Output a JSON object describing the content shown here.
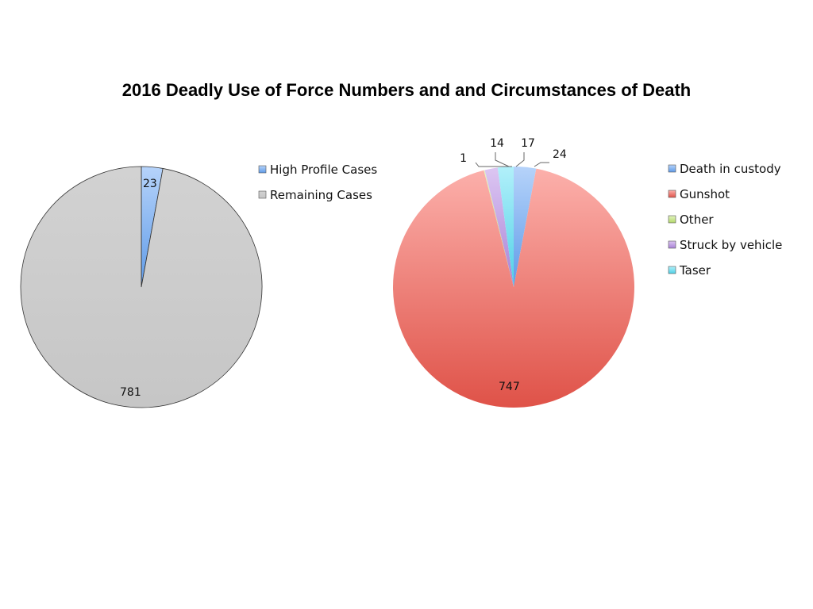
{
  "title": "2016 Deadly Use of Force Numbers and and Circumstances of Death",
  "chart_data": [
    {
      "type": "pie",
      "title": "",
      "legend_position": "right",
      "slices": [
        {
          "label": "High Profile Cases",
          "value": 23,
          "color": "#8fb8f2"
        },
        {
          "label": "Remaining Cases",
          "value": 781,
          "color": "#cccccc"
        }
      ]
    },
    {
      "type": "pie",
      "title": "",
      "legend_position": "right",
      "slices": [
        {
          "label": "Death in custody",
          "value": 24,
          "color": "#93c1f7"
        },
        {
          "label": "Gunshot",
          "value": 747,
          "color": "#ea6f67"
        },
        {
          "label": "Other",
          "value": 1,
          "color": "#cfe89a"
        },
        {
          "label": "Struck by vehicle",
          "value": 14,
          "color": "#c8a6e6"
        },
        {
          "label": "Taser",
          "value": 17,
          "color": "#7fe0f0"
        }
      ]
    }
  ]
}
